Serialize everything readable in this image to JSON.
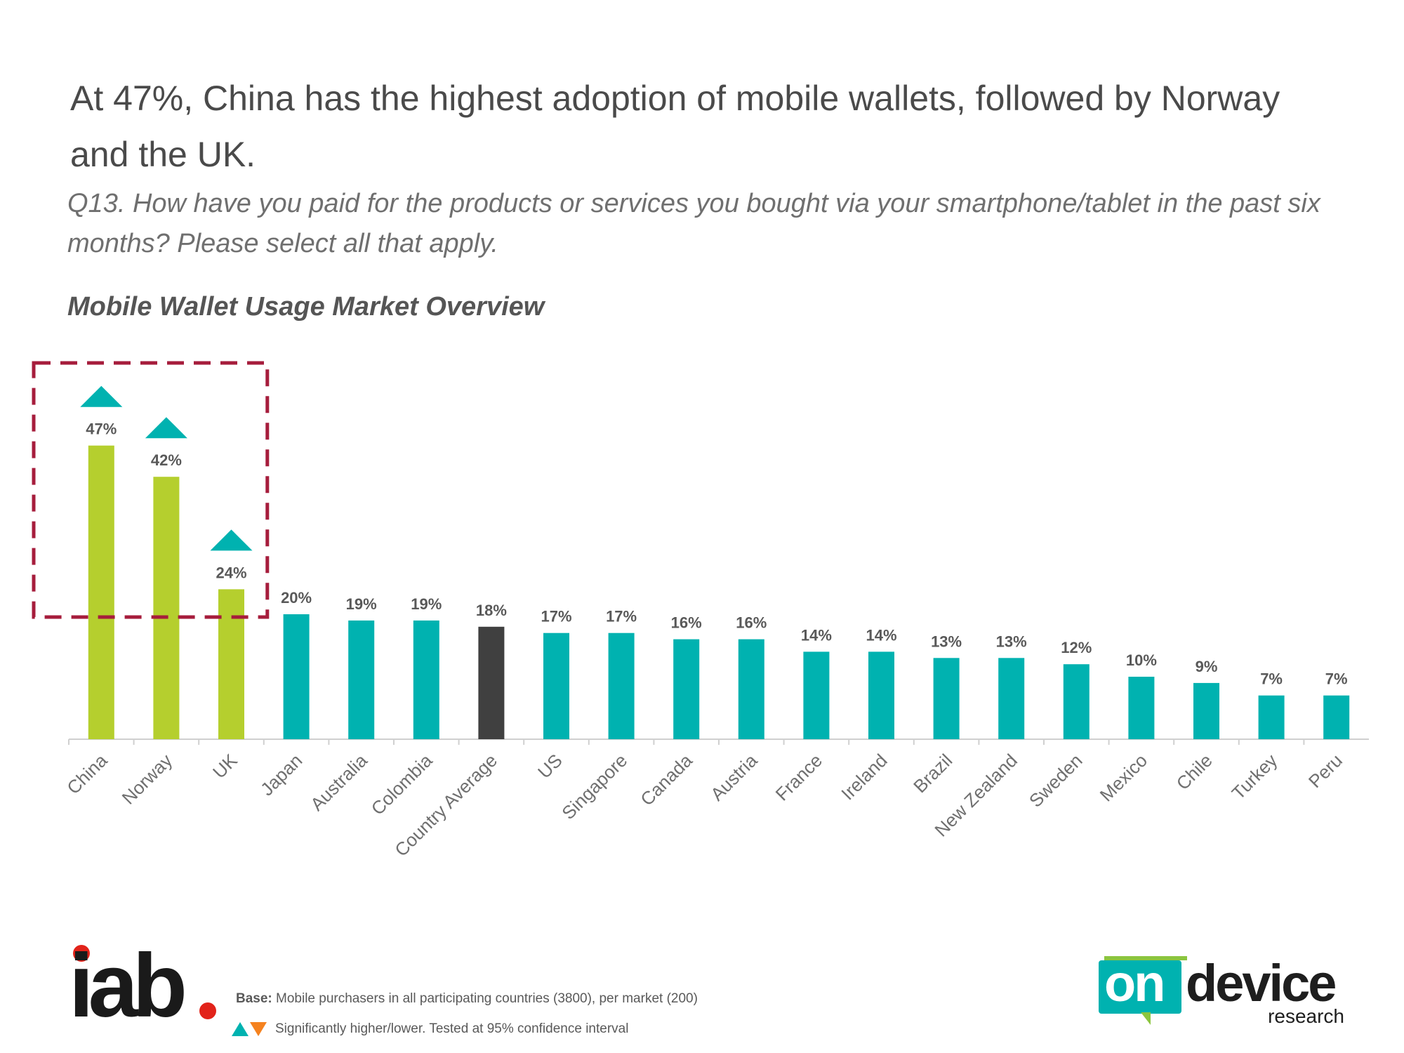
{
  "headline": "At 47%, China has the highest adoption of mobile wallets, followed by Norway and the UK.",
  "question": "Q13. How have you paid for the products or services you bought via your smartphone/tablet in the past six months? Please select all that apply.",
  "colors": {
    "highlight_bar": "#b5cf2e",
    "default_bar": "#00b2b0",
    "average_bar": "#404040",
    "highlight_box": "#a61d3c",
    "higher_marker": "#00b2b0",
    "lower_marker": "#f5821f"
  },
  "chart_data": {
    "type": "bar",
    "title": "Mobile Wallet Usage Market Overview",
    "xlabel": "",
    "ylabel": "",
    "ylim": [
      0,
      50
    ],
    "categories": [
      "China",
      "Norway",
      "UK",
      "Japan",
      "Australia",
      "Colombia",
      "Country Average",
      "US",
      "Singapore",
      "Canada",
      "Austria",
      "France",
      "Ireland",
      "Brazil",
      "New Zealand",
      "Sweden",
      "Mexico",
      "Chile",
      "Turkey",
      "Peru"
    ],
    "values": [
      47,
      42,
      24,
      20,
      19,
      19,
      18,
      17,
      17,
      16,
      16,
      14,
      14,
      13,
      13,
      12,
      10,
      9,
      7,
      7
    ],
    "value_labels": [
      "47%",
      "42%",
      "24%",
      "20%",
      "19%",
      "19%",
      "18%",
      "17%",
      "17%",
      "16%",
      "16%",
      "14%",
      "14%",
      "13%",
      "13%",
      "12%",
      "10%",
      "9%",
      "7%",
      "7%"
    ],
    "bar_groups": [
      "highlight",
      "highlight",
      "highlight",
      "default",
      "default",
      "default",
      "average",
      "default",
      "default",
      "default",
      "default",
      "default",
      "default",
      "default",
      "default",
      "default",
      "default",
      "default",
      "default",
      "default"
    ],
    "significantly_higher": [
      "China",
      "Norway",
      "UK"
    ],
    "highlighted_categories": [
      "China",
      "Norway",
      "UK"
    ]
  },
  "footer": {
    "iab_logo_text": "iab",
    "base_label": "Base:",
    "base_text": "Mobile purchasers in all participating countries (3800), per market (200)",
    "significance_text": "Significantly higher/lower. Tested at 95% confidence interval",
    "ondevice_logo": {
      "on": "on",
      "device": "device",
      "research": "research"
    }
  }
}
